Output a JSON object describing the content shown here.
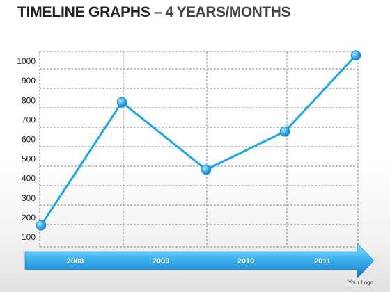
{
  "header": {
    "title_main": "TIMELINE  GRAPHS",
    "title_sub": " – 4 YEARS/MONTHS"
  },
  "footer": {
    "logo_text": "Your Logo"
  },
  "colors": {
    "line": "#1aa7e8",
    "marker": "#2b9fe0",
    "grid": "#888888",
    "arrow_light": "#5cc9f7",
    "arrow_dark": "#1c7fd0"
  },
  "chart_data": {
    "type": "line",
    "title": "",
    "xlabel": "",
    "ylabel": "",
    "x_tick_labels": [
      "2008",
      "2009",
      "2010",
      "2011"
    ],
    "y_ticks": [
      100,
      200,
      300,
      400,
      500,
      600,
      700,
      800,
      900,
      1000
    ],
    "ylim": [
      50,
      1050
    ],
    "grid": true,
    "series": [
      {
        "values": [
          160,
          790,
          445,
          640,
          1030
        ]
      }
    ]
  }
}
